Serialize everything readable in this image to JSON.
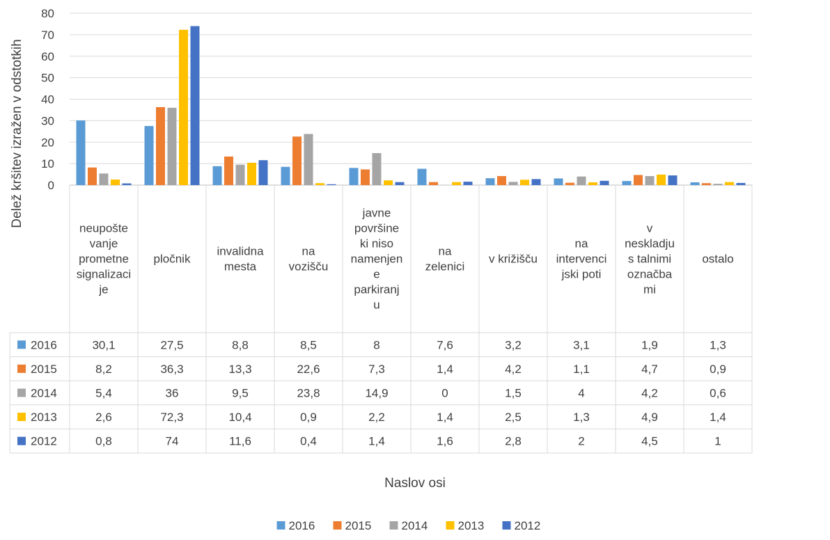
{
  "chart_data": {
    "type": "bar",
    "title": "",
    "xlabel": "Naslov osi",
    "ylabel": "Delež kršitev izražen v odstotkih",
    "ylim": [
      0,
      80
    ],
    "yticks": [
      0,
      10,
      20,
      30,
      40,
      50,
      60,
      70,
      80
    ],
    "grid": true,
    "legend_position": "bottom",
    "data_table": true,
    "categories": [
      [
        "neupošte",
        "vanje",
        "prometne",
        "signalizaci",
        "je"
      ],
      [
        "pločnik"
      ],
      [
        "invalidna",
        "mesta"
      ],
      [
        "na",
        "vozišču"
      ],
      [
        "javne",
        "površine",
        "ki niso",
        "namenjen",
        "e",
        "parkiranj",
        "u"
      ],
      [
        "na",
        "zelenici"
      ],
      [
        "v križišču"
      ],
      [
        "na",
        "intervenci",
        "jski poti"
      ],
      [
        "v",
        "neskladju",
        "s talnimi",
        "označba",
        "mi"
      ],
      [
        "ostalo"
      ]
    ],
    "series": [
      {
        "name": "2016",
        "color": "#5b9bd5",
        "values": [
          30.1,
          27.5,
          8.8,
          8.5,
          8,
          7.6,
          3.2,
          3.1,
          1.9,
          1.3
        ],
        "labels": [
          "30,1",
          "27,5",
          "8,8",
          "8,5",
          "8",
          "7,6",
          "3,2",
          "3,1",
          "1,9",
          "1,3"
        ]
      },
      {
        "name": "2015",
        "color": "#ed7d31",
        "values": [
          8.2,
          36.3,
          13.3,
          22.6,
          7.3,
          1.4,
          4.2,
          1.1,
          4.7,
          0.9
        ],
        "labels": [
          "8,2",
          "36,3",
          "13,3",
          "22,6",
          "7,3",
          "1,4",
          "4,2",
          "1,1",
          "4,7",
          "0,9"
        ]
      },
      {
        "name": "2014",
        "color": "#a5a5a5",
        "values": [
          5.4,
          36,
          9.5,
          23.8,
          14.9,
          0,
          1.5,
          4,
          4.2,
          0.6
        ],
        "labels": [
          "5,4",
          "36",
          "9,5",
          "23,8",
          "14,9",
          "0",
          "1,5",
          "4",
          "4,2",
          "0,6"
        ]
      },
      {
        "name": "2013",
        "color": "#ffc000",
        "values": [
          2.6,
          72.3,
          10.4,
          0.9,
          2.2,
          1.4,
          2.5,
          1.3,
          4.9,
          1.4
        ],
        "labels": [
          "2,6",
          "72,3",
          "10,4",
          "0,9",
          "2,2",
          "1,4",
          "2,5",
          "1,3",
          "4,9",
          "1,4"
        ]
      },
      {
        "name": "2012",
        "color": "#4472c4",
        "values": [
          0.8,
          74,
          11.6,
          0.4,
          1.4,
          1.6,
          2.8,
          2,
          4.5,
          1
        ],
        "labels": [
          "0,8",
          "74",
          "11,6",
          "0,4",
          "1,4",
          "1,6",
          "2,8",
          "2",
          "4,5",
          "1"
        ]
      }
    ]
  }
}
